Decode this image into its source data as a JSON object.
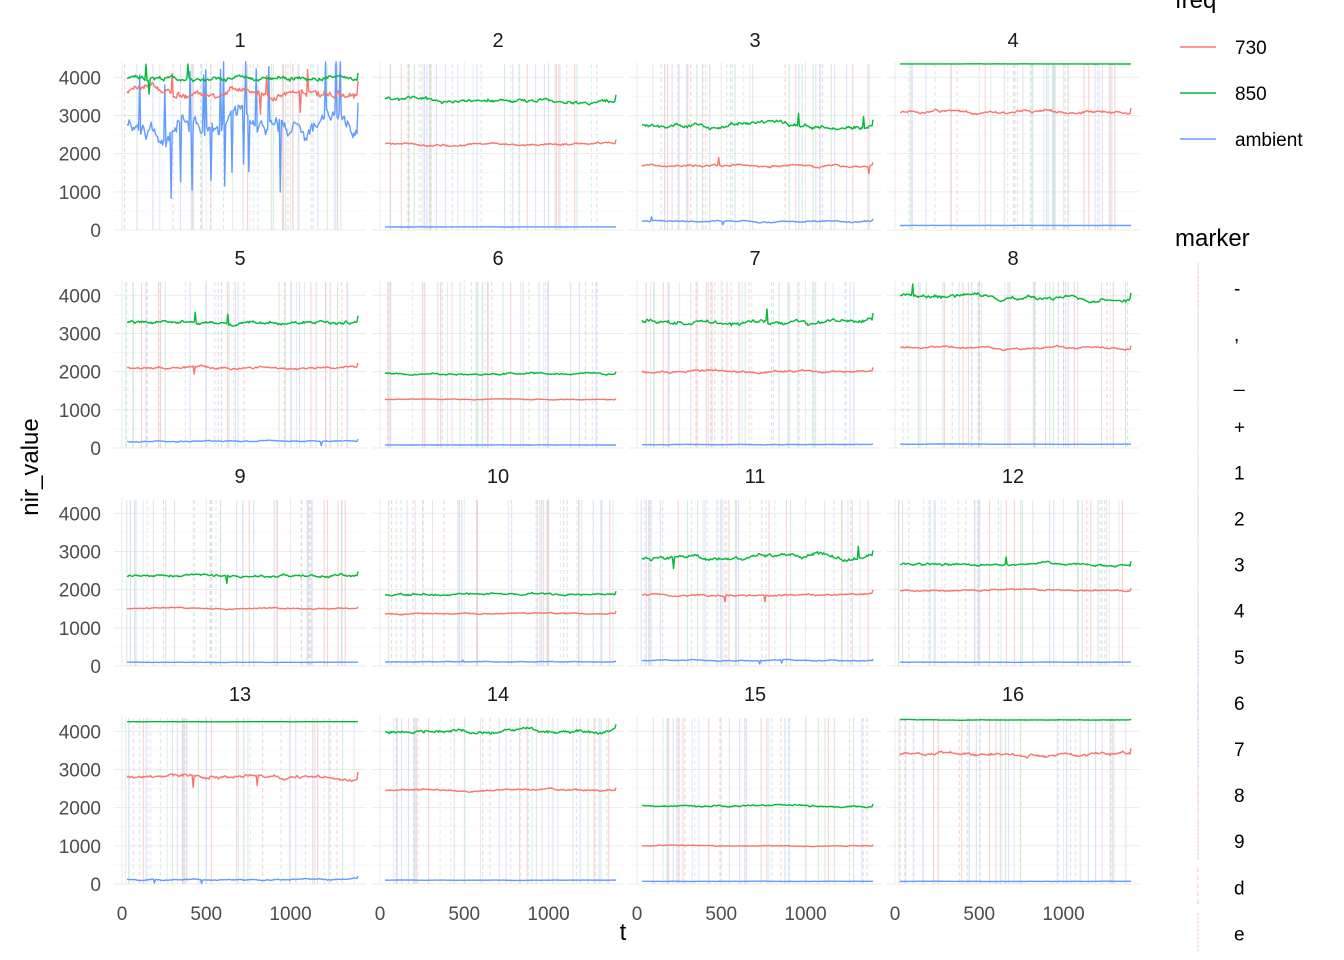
{
  "chart_data": {
    "type": "line",
    "xlabel": "t",
    "ylabel": "nir_value",
    "xlim": [
      0,
      1400
    ],
    "ylim": [
      0,
      4400
    ],
    "x_ticks": [
      0,
      500,
      1000
    ],
    "y_ticks": [
      0,
      1000,
      2000,
      3000,
      4000
    ],
    "grid": true,
    "legend": {
      "placement": "right",
      "freq": {
        "title": "freq",
        "entries": [
          {
            "label": "730",
            "color": "#F8766D"
          },
          {
            "label": "850",
            "color": "#00BA38"
          },
          {
            "label": "ambient",
            "color": "#619CFF"
          }
        ]
      },
      "marker": {
        "title": "marker",
        "entries": [
          "-",
          ",",
          "_",
          "+",
          "1",
          "2",
          "3",
          "4",
          "5",
          "6",
          "7",
          "8",
          "9",
          "d",
          "e"
        ]
      }
    },
    "panels": [
      {
        "label": "1",
        "series": [
          {
            "name": "730",
            "level": 3600,
            "noise": 170,
            "spikes": 5
          },
          {
            "name": "850",
            "level": 3950,
            "noise": 110,
            "spikes": 3
          },
          {
            "name": "ambient",
            "level": 2700,
            "noise": 450,
            "spikes": 25
          }
        ]
      },
      {
        "label": "2",
        "series": [
          {
            "name": "730",
            "level": 2250,
            "noise": 45,
            "spikes": 0
          },
          {
            "name": "850",
            "level": 3400,
            "noise": 90,
            "spikes": 0
          },
          {
            "name": "ambient",
            "level": 80,
            "noise": 3,
            "spikes": 0
          }
        ]
      },
      {
        "label": "3",
        "series": [
          {
            "name": "730",
            "level": 1680,
            "noise": 55,
            "spikes": 2
          },
          {
            "name": "850",
            "level": 2750,
            "noise": 90,
            "spikes": 2
          },
          {
            "name": "ambient",
            "level": 230,
            "noise": 30,
            "spikes": 2
          }
        ]
      },
      {
        "label": "4",
        "series": [
          {
            "name": "730",
            "level": 3100,
            "noise": 70,
            "spikes": 0
          },
          {
            "name": "850",
            "level": 4350,
            "noise": 2,
            "spikes": 0
          },
          {
            "name": "ambient",
            "level": 120,
            "noise": 3,
            "spikes": 0
          }
        ]
      },
      {
        "label": "5",
        "series": [
          {
            "name": "730",
            "level": 2100,
            "noise": 55,
            "spikes": 1
          },
          {
            "name": "850",
            "level": 3280,
            "noise": 80,
            "spikes": 2
          },
          {
            "name": "ambient",
            "level": 180,
            "noise": 30,
            "spikes": 1
          }
        ]
      },
      {
        "label": "6",
        "series": [
          {
            "name": "730",
            "level": 1270,
            "noise": 20,
            "spikes": 0
          },
          {
            "name": "850",
            "level": 1950,
            "noise": 40,
            "spikes": 0
          },
          {
            "name": "ambient",
            "level": 80,
            "noise": 3,
            "spikes": 0
          }
        ]
      },
      {
        "label": "7",
        "series": [
          {
            "name": "730",
            "level": 2000,
            "noise": 50,
            "spikes": 0
          },
          {
            "name": "850",
            "level": 3300,
            "noise": 100,
            "spikes": 1
          },
          {
            "name": "ambient",
            "level": 90,
            "noise": 8,
            "spikes": 0
          }
        ]
      },
      {
        "label": "8",
        "series": [
          {
            "name": "730",
            "level": 2620,
            "noise": 50,
            "spikes": 0
          },
          {
            "name": "850",
            "level": 3950,
            "noise": 90,
            "spikes": 1
          },
          {
            "name": "ambient",
            "level": 100,
            "noise": 5,
            "spikes": 0
          }
        ]
      },
      {
        "label": "9",
        "series": [
          {
            "name": "730",
            "level": 1500,
            "noise": 30,
            "spikes": 0
          },
          {
            "name": "850",
            "level": 2370,
            "noise": 60,
            "spikes": 1
          },
          {
            "name": "ambient",
            "level": 100,
            "noise": 5,
            "spikes": 0
          }
        ]
      },
      {
        "label": "10",
        "series": [
          {
            "name": "730",
            "level": 1380,
            "noise": 30,
            "spikes": 0
          },
          {
            "name": "850",
            "level": 1880,
            "noise": 45,
            "spikes": 0
          },
          {
            "name": "ambient",
            "level": 110,
            "noise": 12,
            "spikes": 1
          }
        ]
      },
      {
        "label": "11",
        "series": [
          {
            "name": "730",
            "level": 1850,
            "noise": 45,
            "spikes": 2
          },
          {
            "name": "850",
            "level": 2850,
            "noise": 90,
            "spikes": 2
          },
          {
            "name": "ambient",
            "level": 140,
            "noise": 25,
            "spikes": 2
          }
        ]
      },
      {
        "label": "12",
        "series": [
          {
            "name": "730",
            "level": 1980,
            "noise": 35,
            "spikes": 0
          },
          {
            "name": "850",
            "level": 2650,
            "noise": 55,
            "spikes": 1
          },
          {
            "name": "ambient",
            "level": 100,
            "noise": 5,
            "spikes": 0
          }
        ]
      },
      {
        "label": "13",
        "series": [
          {
            "name": "730",
            "level": 2800,
            "noise": 80,
            "spikes": 2
          },
          {
            "name": "850",
            "level": 4250,
            "noise": 2,
            "spikes": 0
          },
          {
            "name": "ambient",
            "level": 120,
            "noise": 30,
            "spikes": 2
          }
        ]
      },
      {
        "label": "14",
        "series": [
          {
            "name": "730",
            "level": 2450,
            "noise": 40,
            "spikes": 0
          },
          {
            "name": "850",
            "level": 4000,
            "noise": 80,
            "spikes": 0
          },
          {
            "name": "ambient",
            "level": 100,
            "noise": 5,
            "spikes": 0
          }
        ]
      },
      {
        "label": "15",
        "series": [
          {
            "name": "730",
            "level": 1000,
            "noise": 20,
            "spikes": 0
          },
          {
            "name": "850",
            "level": 2050,
            "noise": 40,
            "spikes": 0
          },
          {
            "name": "ambient",
            "level": 70,
            "noise": 4,
            "spikes": 0
          }
        ]
      },
      {
        "label": "16",
        "series": [
          {
            "name": "730",
            "level": 3400,
            "noise": 70,
            "spikes": 0
          },
          {
            "name": "850",
            "level": 4300,
            "noise": 10,
            "spikes": 0
          },
          {
            "name": "ambient",
            "level": 70,
            "noise": 4,
            "spikes": 0
          }
        ]
      }
    ]
  }
}
